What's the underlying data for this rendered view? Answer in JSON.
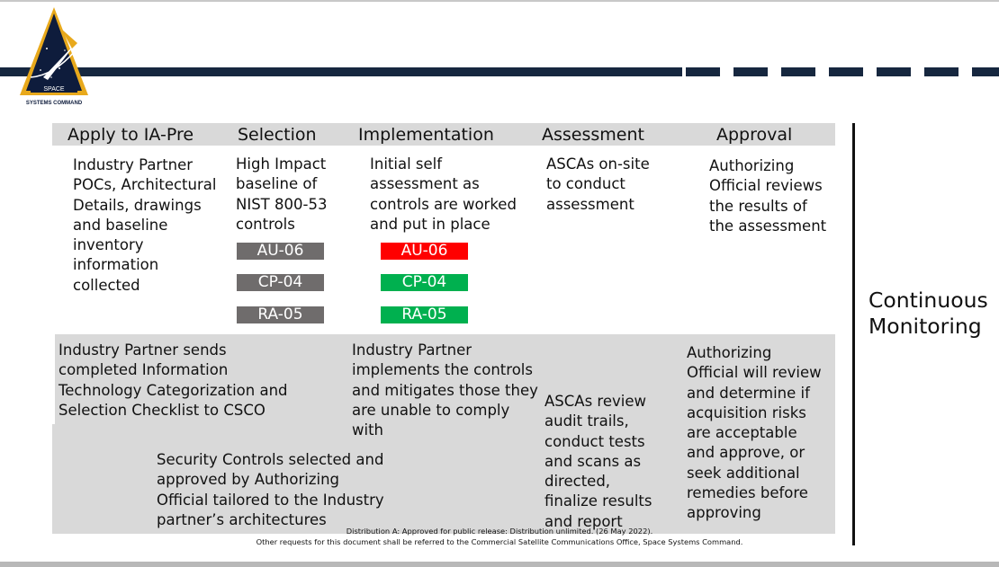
{
  "logo": {
    "text_line1": "SPACE",
    "text_line2": "SYSTEMS COMMAND"
  },
  "phases": [
    {
      "label": "Apply to IA-Pre"
    },
    {
      "label": "Selection"
    },
    {
      "label": "Implementation"
    },
    {
      "label": "Assessment"
    },
    {
      "label": "Approval"
    }
  ],
  "upper": {
    "apply": [
      "Industry Partner",
      "POCs, Architectural",
      "Details, drawings",
      "and baseline",
      "inventory",
      "information",
      "collected"
    ],
    "selection": [
      "High Impact",
      "baseline of",
      "NIST 800-53",
      "controls"
    ],
    "implementation": [
      "Initial self",
      "assessment as",
      "controls are worked",
      "and put in place"
    ],
    "assessment": [
      "ASCAs on-site",
      "to conduct",
      "assessment"
    ],
    "approval": [
      "Authorizing",
      "Official reviews",
      "the results of",
      "the assessment"
    ]
  },
  "selection_controls": [
    {
      "label": "AU-06",
      "color": "#6f6c6c"
    },
    {
      "label": "CP-04",
      "color": "#6f6c6c"
    },
    {
      "label": "RA-05",
      "color": "#6f6c6c"
    }
  ],
  "implementation_controls": [
    {
      "label": "AU-06",
      "color": "#ff0000"
    },
    {
      "label": "CP-04",
      "color": "#00b04f"
    },
    {
      "label": "RA-05",
      "color": "#00b04f"
    }
  ],
  "lower": {
    "industry_sends": [
      "Industry Partner sends",
      "completed Information",
      "Technology Categorization and",
      "Selection Checklist to CSCO"
    ],
    "security_controls": [
      "Security Controls selected and",
      "approved by Authorizing",
      "Official tailored to the Industry",
      "partner’s architectures"
    ],
    "industry_implements": [
      "Industry Partner",
      "implements the controls",
      "and mitigates those they",
      "are unable to comply",
      "with"
    ],
    "ascas_review": [
      "ASCAs review",
      "audit trails,",
      "conduct tests",
      "and scans as",
      "directed,",
      "finalize results",
      "and report"
    ],
    "authorizing_will": [
      "Authorizing",
      "Official will review",
      "and determine if",
      "acquisition risks",
      "are acceptable",
      "and approve, or",
      "seek additional",
      "remedies before",
      "approving"
    ]
  },
  "continuous_monitoring": [
    "Continuous",
    "Monitoring"
  ],
  "footer": {
    "line1": "Distribution A: Approved for public release: Distribution unlimited. (26 May 2022).",
    "line2": "Other requests for this document shall be referred to the Commercial Satellite Communications Office, Space Systems Command."
  }
}
